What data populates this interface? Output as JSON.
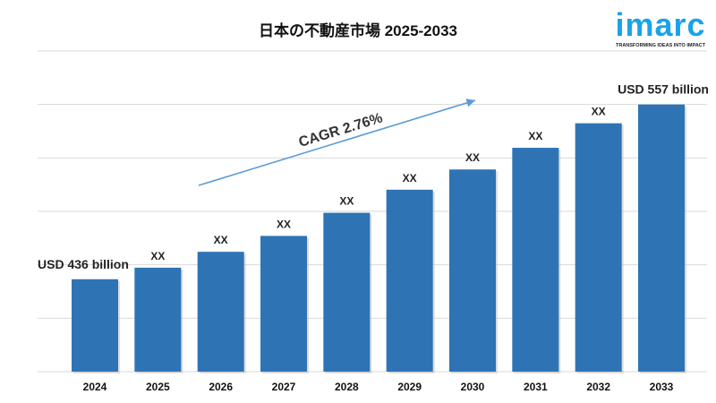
{
  "chart_data": {
    "type": "bar",
    "title": "日本の不動産市場 2025-2033",
    "categories": [
      "2024",
      "2025",
      "2026",
      "2027",
      "2028",
      "2029",
      "2030",
      "2031",
      "2032",
      "2033"
    ],
    "values": [
      436,
      444,
      455,
      466,
      482,
      498,
      512,
      527,
      544,
      557
    ],
    "data_labels": [
      "USD 436 billion",
      "XX",
      "XX",
      "XX",
      "XX",
      "XX",
      "XX",
      "XX",
      "XX",
      "USD 557 billion"
    ],
    "ylim": [
      372,
      594
    ],
    "grid": true,
    "bar_color": "#2e74b5",
    "annotation": "CAGR 2.76%",
    "arrow_color": "#5b9bd5"
  },
  "logo": {
    "word": "imarc",
    "tagline": "TRANSFORMING IDEAS INTO IMPACT",
    "color": "#1aa3e8"
  }
}
